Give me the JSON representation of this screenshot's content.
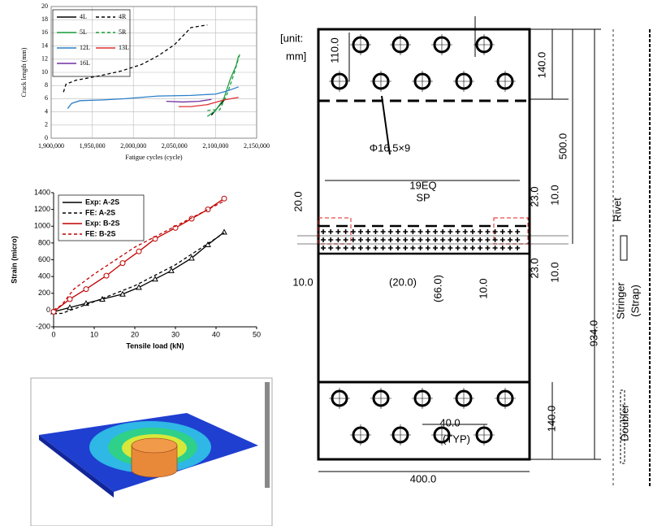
{
  "chart_data": [
    {
      "type": "line",
      "ylabel": "Crack length (mm)",
      "xlabel": "Fatigue cycles (cycle)",
      "xlim": [
        1900000,
        2150000
      ],
      "xticks": [
        {
          "value": 1900000,
          "label": "1,900,000"
        },
        {
          "value": 1950000,
          "label": "1,950,000"
        },
        {
          "value": 2000000,
          "label": "2,000,000"
        },
        {
          "value": 2050000,
          "label": "2,050,000"
        },
        {
          "value": 2100000,
          "label": "2,100,000"
        },
        {
          "value": 2150000,
          "label": "2,150,000"
        }
      ],
      "ylim": [
        0,
        20
      ],
      "yticks": [
        0,
        2,
        4,
        6,
        8,
        10,
        12,
        14,
        16,
        18,
        20
      ],
      "grid": true,
      "legend_columns": 2,
      "series": [
        {
          "name": "4L",
          "color": "#000000",
          "dash": false,
          "x": [
            2095000,
            2105000,
            2112000
          ],
          "values": [
            3.5,
            5,
            6
          ]
        },
        {
          "name": "4R",
          "color": "#000000",
          "dash": true,
          "x": [
            1915000,
            1918000,
            1930000,
            1960000,
            1985000,
            2010000,
            2030000,
            2050000,
            2060000,
            2070000,
            2090000
          ],
          "values": [
            7,
            8.2,
            8.8,
            9.5,
            10.2,
            11.2,
            12.5,
            14.2,
            15.5,
            16.8,
            17.2
          ]
        },
        {
          "name": "5L",
          "color": "#1a9e3c",
          "dash": false,
          "x": [
            2090000,
            2100000,
            2110000,
            2118000,
            2125000,
            2128000
          ],
          "values": [
            3.3,
            4.2,
            6,
            9,
            11,
            12.5
          ]
        },
        {
          "name": "5R",
          "color": "#1a9e3c",
          "dash": true,
          "x": [
            2090000,
            2095000,
            2105000,
            2115000,
            2123000,
            2130000
          ],
          "values": [
            4.2,
            4.3,
            4.3,
            7,
            10,
            13
          ]
        },
        {
          "name": "12L",
          "color": "#2a7fc9",
          "dash": false,
          "x": [
            1920000,
            1925000,
            1935000,
            1960000,
            1990000,
            2030000,
            2070000,
            2100000,
            2115000,
            2128000
          ],
          "values": [
            4.5,
            5.3,
            5.7,
            5.8,
            6,
            6.4,
            6.5,
            6.7,
            7.2,
            7.8
          ]
        },
        {
          "name": "13L",
          "color": "#e03030",
          "dash": false,
          "x": [
            2055000,
            2070000,
            2090000,
            2110000,
            2128000
          ],
          "values": [
            4.8,
            4.8,
            5.1,
            5.8,
            6.2
          ]
        },
        {
          "name": "16L",
          "color": "#7030a0",
          "dash": false,
          "x": [
            2040000,
            2060000,
            2080000,
            2095000
          ],
          "values": [
            5.6,
            5.5,
            5.6,
            5.9
          ]
        }
      ]
    },
    {
      "type": "line",
      "ylabel": "Strain (micro)",
      "xlabel": "Tensile load (kN)",
      "xlim": [
        0,
        50
      ],
      "xticks": [
        0,
        10,
        20,
        30,
        40,
        50
      ],
      "ylim": [
        -200,
        1400
      ],
      "yticks": [
        -200,
        0,
        200,
        400,
        600,
        800,
        1000,
        1200,
        1400
      ],
      "grid": false,
      "legend_columns": 1,
      "series": [
        {
          "name": "Exp: A-2S",
          "color": "#000000",
          "dash": false,
          "marker": "triangle",
          "x": [
            0,
            4,
            8,
            12,
            17,
            21,
            25,
            29,
            34,
            38,
            42
          ],
          "values": [
            -20,
            30,
            80,
            130,
            190,
            270,
            370,
            470,
            620,
            780,
            930
          ]
        },
        {
          "name": "FE: A-2S",
          "color": "#000000",
          "dash": true,
          "x": [
            0,
            2,
            10,
            20,
            30,
            42
          ],
          "values": [
            -40,
            -40,
            100,
            290,
            540,
            920
          ]
        },
        {
          "name": "Exp: B-2S",
          "color": "#c00000",
          "dash": false,
          "marker": "circle",
          "x": [
            0,
            4,
            8,
            13,
            17,
            21,
            25,
            30,
            34,
            38,
            42
          ],
          "values": [
            -20,
            130,
            250,
            410,
            560,
            700,
            850,
            980,
            1090,
            1200,
            1330
          ]
        },
        {
          "name": "FE: B-2S",
          "color": "#c00000",
          "dash": true,
          "x": [
            0,
            2,
            5,
            10,
            20,
            30,
            42
          ],
          "values": [
            0,
            60,
            250,
            430,
            750,
            1000,
            1300
          ]
        }
      ]
    }
  ],
  "drawing": {
    "labels": [
      "[unit:",
      "mm]",
      "110.0",
      "140.0",
      "500.0",
      "Φ16.5×9",
      "19EQ",
      "SP",
      "20.0",
      "23.0",
      "10.0",
      "10.0",
      "(20.0)",
      "(66.0)",
      "10.0",
      "23.0",
      "10.0",
      "934.0",
      "140.0",
      "40.0",
      "(TYP)",
      "400.0",
      "Rivet",
      "Stringer",
      "(Strap)",
      "Doubler"
    ]
  }
}
